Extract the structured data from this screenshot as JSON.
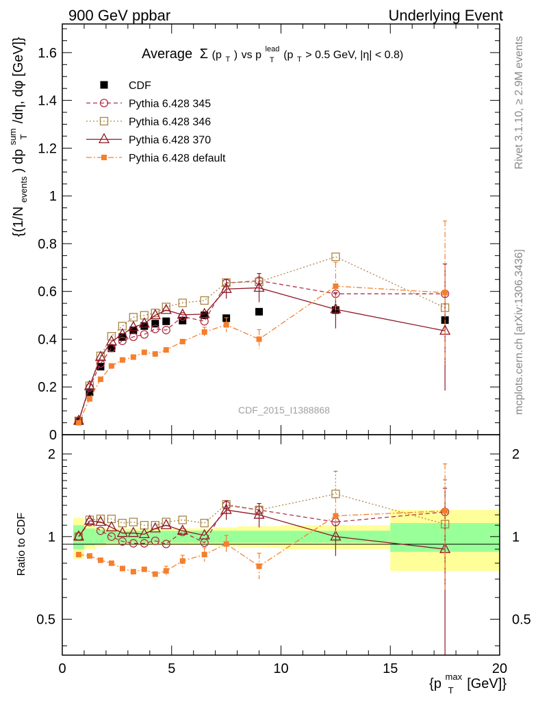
{
  "header": {
    "left": "900 GeV ppbar",
    "right": "Underlying Event"
  },
  "side_labels": {
    "rivet": "Rivet 3.1.10, ≥ 2.9M events",
    "mcplots": "mcplots.cern.ch [arXiv:1306.3436]"
  },
  "chart_data": [
    {
      "type": "scatter",
      "title_parts": {
        "main": "Average",
        "sigma": "Σ",
        "sigma_arg": "(p",
        "sigma_sub": "T",
        "sigma_close": ")",
        "vs": " vs p",
        "lead_sup": "lead",
        "lead_sub": "T",
        "cut": " (p",
        "cut_sub": "T",
        "cut_rest": " > 0.5 GeV, |η| < 0.8)"
      },
      "ylabel_parts": {
        "a": "{(1/N",
        "a_sub": "events",
        "b": ") dp",
        "b_sup": "sum",
        "b_sub": "T",
        "c": " /dη, dφ [GeV]}"
      },
      "watermark": "CDF_2015_I1388868",
      "xlim": [
        0,
        20
      ],
      "ylim": [
        0,
        1.72
      ],
      "yticks": [
        "0",
        "0.2",
        "0.4",
        "0.6",
        "0.8",
        "1",
        "1.2",
        "1.4",
        "1.6"
      ],
      "legend_position": "top-left",
      "series": [
        {
          "name": "CDF",
          "color": "#000000",
          "marker": "filled-square",
          "line": "none",
          "x": [
            0.75,
            1.25,
            1.75,
            2.25,
            2.75,
            3.25,
            3.75,
            4.25,
            4.75,
            5.5,
            6.5,
            7.5,
            9.0,
            12.5,
            17.5
          ],
          "y": [
            0.058,
            0.178,
            0.285,
            0.362,
            0.409,
            0.437,
            0.455,
            0.465,
            0.475,
            0.478,
            0.5,
            0.488,
            0.515,
            0.522,
            0.48
          ]
        },
        {
          "name": "Pythia 6.428 345",
          "color": "#b03048",
          "marker": "open-circle",
          "line": "dashed",
          "x": [
            0.75,
            1.25,
            1.75,
            2.25,
            2.75,
            3.25,
            3.75,
            4.25,
            4.75,
            5.5,
            6.5,
            7.5,
            9.0,
            12.5,
            17.5
          ],
          "y": [
            0.058,
            0.198,
            0.298,
            0.363,
            0.393,
            0.41,
            0.42,
            0.443,
            0.438,
            0.495,
            0.475,
            0.635,
            0.645,
            0.59,
            0.59
          ]
        },
        {
          "name": "Pythia 6.428 346",
          "color": "#a68545",
          "marker": "open-square",
          "line": "dotted",
          "x": [
            0.75,
            1.25,
            1.75,
            2.25,
            2.75,
            3.25,
            3.75,
            4.25,
            4.75,
            5.5,
            6.5,
            7.5,
            9.0,
            12.5,
            17.5
          ],
          "y": [
            0.058,
            0.205,
            0.33,
            0.412,
            0.455,
            0.492,
            0.5,
            0.51,
            0.535,
            0.552,
            0.562,
            0.637,
            0.64,
            0.745,
            0.532
          ]
        },
        {
          "name": "Pythia 6.428 370",
          "color": "#8e1624",
          "marker": "open-triangle",
          "line": "solid",
          "x": [
            0.75,
            1.25,
            1.75,
            2.25,
            2.75,
            3.25,
            3.75,
            4.25,
            4.75,
            5.5,
            6.5,
            7.5,
            9.0,
            12.5,
            17.5
          ],
          "y": [
            0.058,
            0.203,
            0.325,
            0.39,
            0.42,
            0.45,
            0.465,
            0.5,
            0.522,
            0.502,
            0.505,
            0.61,
            0.615,
            0.525,
            0.435
          ],
          "yerr_hi": [
            0,
            0,
            0,
            0,
            0,
            0,
            0,
            0,
            0,
            0,
            0,
            0.04,
            0.06,
            0.07,
            0.28
          ],
          "yerr_lo": [
            0,
            0,
            0,
            0,
            0,
            0,
            0,
            0,
            0,
            0,
            0,
            0.04,
            0.06,
            0.08,
            0.25
          ]
        },
        {
          "name": "Pythia 6.428 default",
          "color": "#f57f2d",
          "marker": "filled-square-small",
          "line": "dashdot",
          "x": [
            0.75,
            1.25,
            1.75,
            2.25,
            2.75,
            3.25,
            3.75,
            4.25,
            4.75,
            5.5,
            6.5,
            7.5,
            9.0,
            12.5,
            17.5
          ],
          "y": [
            0.05,
            0.15,
            0.232,
            0.288,
            0.313,
            0.325,
            0.345,
            0.338,
            0.355,
            0.39,
            0.43,
            0.46,
            0.4,
            0.622,
            0.595
          ],
          "yerr_hi": [
            0,
            0,
            0,
            0,
            0,
            0,
            0,
            0,
            0,
            0,
            0.02,
            0.03,
            0.04,
            0.1,
            0.3
          ],
          "yerr_lo": [
            0,
            0,
            0,
            0,
            0,
            0,
            0,
            0,
            0,
            0,
            0.02,
            0.03,
            0.04,
            0.1,
            0.3
          ]
        }
      ]
    },
    {
      "type": "scatter",
      "title": "",
      "ylabel": "Ratio to CDF",
      "xlabel_parts": {
        "a": "{p",
        "sup": "max",
        "sub": "T",
        "b": " [GeV]}"
      },
      "yscale": "log",
      "xlim": [
        0,
        20
      ],
      "ylim": [
        0.37,
        2.35
      ],
      "xticks": [
        "0",
        "5",
        "10",
        "15",
        "20"
      ],
      "yticks_left": [
        "0.5",
        "1",
        "2"
      ],
      "yticks_right": [
        "0.5",
        "1",
        "2"
      ],
      "band_colors": {
        "inner": "#99ff99",
        "outer": "#ffff99"
      },
      "bands": {
        "edges": [
          0.5,
          1.0,
          1.5,
          2.0,
          2.5,
          3.0,
          3.5,
          4.0,
          4.5,
          5.0,
          6.0,
          7.0,
          8.0,
          10.0,
          15.0,
          20.0
        ],
        "stat": [
          0.1,
          0.07,
          0.06,
          0.05,
          0.05,
          0.05,
          0.05,
          0.05,
          0.05,
          0.05,
          0.05,
          0.05,
          0.05,
          0.05,
          0.12
        ],
        "total": [
          0.17,
          0.1,
          0.08,
          0.07,
          0.07,
          0.07,
          0.07,
          0.07,
          0.07,
          0.07,
          0.07,
          0.08,
          0.09,
          0.1,
          0.25
        ]
      },
      "series": [
        {
          "name": "Pythia 6.428 345",
          "color": "#b03048",
          "marker": "open-circle",
          "line": "dashed",
          "x": [
            0.75,
            1.25,
            1.75,
            2.25,
            2.75,
            3.25,
            3.75,
            4.25,
            4.75,
            5.5,
            6.5,
            7.5,
            9.0,
            12.5,
            17.5
          ],
          "y": [
            1.0,
            1.13,
            1.05,
            1.0,
            0.96,
            0.945,
            0.945,
            0.965,
            0.94,
            1.04,
            0.95,
            1.3,
            1.25,
            1.13,
            1.23
          ]
        },
        {
          "name": "Pythia 6.428 346",
          "color": "#a68545",
          "marker": "open-square",
          "line": "dotted",
          "x": [
            0.75,
            1.25,
            1.75,
            2.25,
            2.75,
            3.25,
            3.75,
            4.25,
            4.75,
            5.5,
            6.5,
            7.5,
            9.0,
            12.5,
            17.5
          ],
          "y": [
            1.0,
            1.15,
            1.16,
            1.16,
            1.12,
            1.13,
            1.1,
            1.1,
            1.13,
            1.15,
            1.12,
            1.31,
            1.25,
            1.43,
            1.11
          ],
          "yerr_hi": [
            0,
            0,
            0,
            0,
            0,
            0,
            0,
            0,
            0,
            0,
            0,
            0,
            0,
            0.3,
            0.5
          ]
        },
        {
          "name": "Pythia 6.428 370",
          "color": "#8e1624",
          "marker": "open-triangle",
          "line": "solid",
          "x": [
            0.75,
            1.25,
            1.75,
            2.25,
            2.75,
            3.25,
            3.75,
            4.25,
            4.75,
            5.5,
            6.5,
            7.5,
            9.0,
            12.5,
            17.5
          ],
          "y": [
            1.0,
            1.14,
            1.13,
            1.08,
            1.03,
            1.03,
            1.02,
            1.07,
            1.1,
            1.05,
            1.01,
            1.25,
            1.2,
            1.0,
            0.9
          ],
          "yerr_hi": [
            0,
            0,
            0,
            0,
            0,
            0,
            0,
            0,
            0,
            0,
            0,
            0.1,
            0.12,
            0.13,
            0.6
          ],
          "yerr_lo": [
            0,
            0,
            0,
            0,
            0,
            0,
            0,
            0,
            0,
            0,
            0,
            0.1,
            0.12,
            0.15,
            0.55
          ]
        },
        {
          "name": "Pythia 6.428 default",
          "color": "#f57f2d",
          "marker": "filled-square-small",
          "line": "dashdot",
          "x": [
            0.75,
            1.25,
            1.75,
            2.25,
            2.75,
            3.25,
            3.75,
            4.25,
            4.75,
            5.5,
            6.5,
            7.5,
            9.0,
            12.5,
            17.5
          ],
          "y": [
            0.86,
            0.85,
            0.82,
            0.8,
            0.765,
            0.745,
            0.76,
            0.73,
            0.75,
            0.815,
            0.86,
            0.94,
            0.78,
            1.19,
            1.24
          ],
          "yerr_hi": [
            0,
            0,
            0,
            0,
            0,
            0,
            0,
            0,
            0.03,
            0.04,
            0.05,
            0.07,
            0.09,
            0.2,
            0.6
          ],
          "yerr_lo": [
            0,
            0,
            0,
            0,
            0,
            0,
            0,
            0,
            0.03,
            0.04,
            0.05,
            0.07,
            0.08,
            0.2,
            0.6
          ]
        }
      ]
    }
  ]
}
